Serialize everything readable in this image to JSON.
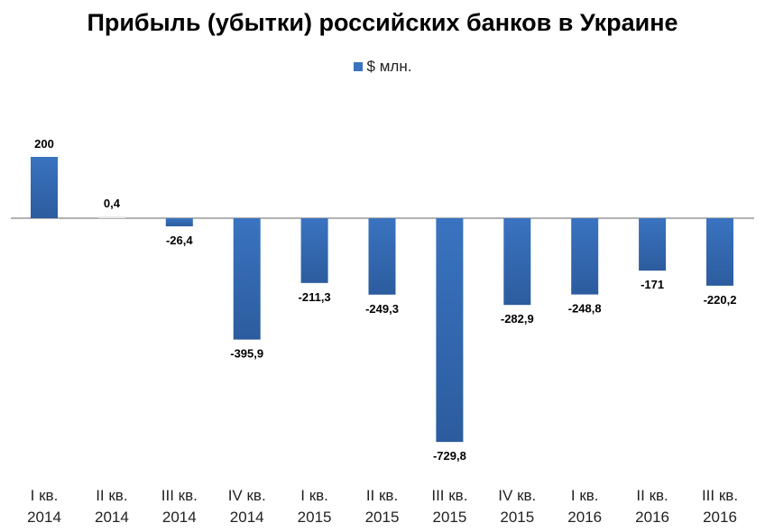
{
  "chart_data": {
    "type": "bar",
    "title": "Прибыль (убытки) российских банков в Украине",
    "legend": [
      "$ млн."
    ],
    "legend_position": "top-center",
    "grid": false,
    "categories": [
      [
        "I кв.",
        "2014"
      ],
      [
        "II кв.",
        "2014"
      ],
      [
        "III кв.",
        "2014"
      ],
      [
        "IV кв.",
        "2014"
      ],
      [
        "I кв.",
        "2015"
      ],
      [
        "II кв.",
        "2015"
      ],
      [
        "III кв.",
        "2015"
      ],
      [
        "IV кв.",
        "2015"
      ],
      [
        "I кв.",
        "2016"
      ],
      [
        "II кв.",
        "2016"
      ],
      [
        "III кв.",
        "2016"
      ]
    ],
    "series": [
      {
        "name": "$ млн.",
        "values": [
          200,
          0.4,
          -26.4,
          -395.9,
          -211.3,
          -249.3,
          -729.8,
          -282.9,
          -248.8,
          -171,
          -220.2
        ],
        "labels": [
          "200",
          "0,4",
          "-26,4",
          "-395,9",
          "-211,3",
          "-249,3",
          "-729,8",
          "-282,9",
          "-248,8",
          "-171",
          "-220,2"
        ]
      }
    ],
    "ylim": [
      -800,
      300
    ],
    "colors": {
      "bar": "#3a73c0",
      "bar_dark": "#2c5c9e",
      "axis": "#999999"
    }
  }
}
